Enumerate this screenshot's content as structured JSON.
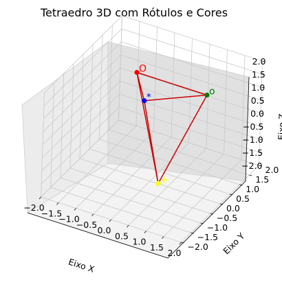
{
  "chart_data": {
    "type": "scatter",
    "title": "Tetraedro 3D com Rótulos e Cores",
    "xlabel": "Eixo X",
    "ylabel": "Eixo Y",
    "zlabel": "Eixo Z",
    "xlim": [
      -2,
      2
    ],
    "ylim": [
      -2,
      2
    ],
    "zlim": [
      -2,
      2
    ],
    "x_ticks": [
      "−2.0",
      "−1.5",
      "−1.0",
      "−0.5",
      "0.0",
      "0.5",
      "1.0",
      "1.5",
      "2.0"
    ],
    "y_ticks": [
      "−2.0",
      "−1.5",
      "−1.0",
      "−0.5",
      "0.0",
      "0.5",
      "1.0",
      "1.5",
      "2.0"
    ],
    "z_ticks": [
      "−2.0",
      "−1.5",
      "−1.0",
      "−0.5",
      "0.0",
      "0.5",
      "1.0",
      "1.5",
      "2.0"
    ],
    "grid": true,
    "edge_color": "#cc0000",
    "points": [
      {
        "label": "O",
        "x": -1,
        "y": 1,
        "z": 1,
        "color": "#ff0000"
      },
      {
        "label": "o",
        "x": 1,
        "y": 1,
        "z": 1,
        "color": "#008000"
      },
      {
        "label": "*",
        "x": -0.5,
        "y": 0.5,
        "z": 0.5,
        "color": "#0000ff"
      },
      {
        "label": "+",
        "x": 0.5,
        "y": -0.5,
        "z": -1.5,
        "color": "#ffff00"
      }
    ],
    "edges": [
      [
        0,
        1
      ],
      [
        0,
        2
      ],
      [
        0,
        3
      ],
      [
        1,
        2
      ],
      [
        1,
        3
      ],
      [
        2,
        3
      ]
    ]
  }
}
